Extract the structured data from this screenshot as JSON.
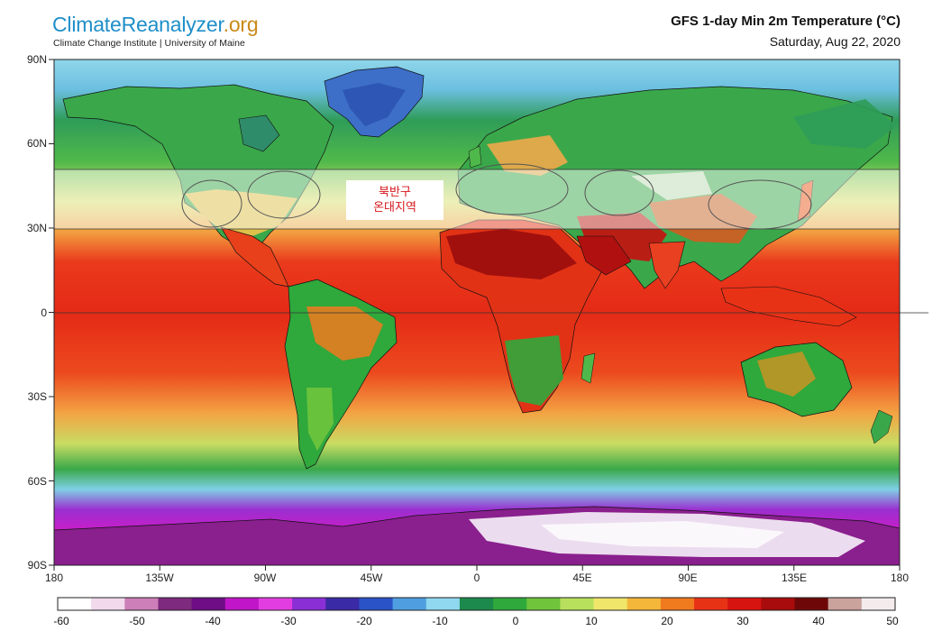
{
  "header": {
    "logo_part1": "Climate",
    "logo_part2": "Reanalyzer",
    "logo_part3": ".org",
    "subtitle": "Climate Change Institute | University of Maine",
    "title": "GFS 1-day Min 2m Temperature (°C)",
    "date": "Saturday, Aug 22, 2020"
  },
  "axes": {
    "lat_ticks": [
      "90N",
      "60N",
      "30N",
      "0",
      "30S",
      "60S",
      "90S"
    ],
    "lon_ticks": [
      "180",
      "135W",
      "90W",
      "45W",
      "0",
      "45E",
      "90E",
      "135E",
      "180"
    ]
  },
  "annotation": {
    "line1": "북반구",
    "line2": "온대지역"
  },
  "colorbar": {
    "labels": [
      "-60",
      "-50",
      "-40",
      "-30",
      "-20",
      "-10",
      "0",
      "10",
      "20",
      "30",
      "40",
      "50"
    ],
    "colors": [
      "#ffffff",
      "#f2d9ec",
      "#cc7fb8",
      "#7d2a7f",
      "#6e0d86",
      "#c015c8",
      "#e23de0",
      "#8a2fd6",
      "#3b2aa6",
      "#2a53c8",
      "#4f9fe0",
      "#8fd8f0",
      "#1c8a4c",
      "#2fa83c",
      "#6fc43c",
      "#b8e05c",
      "#f0e66a",
      "#f5b73a",
      "#f07a1e",
      "#e83216",
      "#d81410",
      "#a80c0c",
      "#6e0808",
      "#c9a39c",
      "#f4ecec"
    ]
  },
  "colors": {
    "band_highlight": "#ffffff",
    "annotation_text": "#d6151a"
  }
}
